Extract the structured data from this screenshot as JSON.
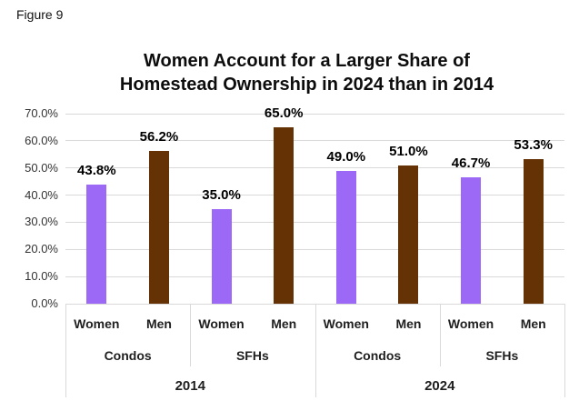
{
  "figure_label": "Figure 9",
  "chart_data": {
    "type": "bar",
    "title": "Women Account for a Larger Share of Homestead Ownership in 2024 than in 2014",
    "title_line1": "Women Account for a Larger Share of",
    "title_line2": "Homestead Ownership in 2024 than in 2014",
    "values": [
      43.8,
      56.2,
      35.0,
      65.0,
      49.0,
      51.0,
      46.7,
      53.3
    ],
    "data_labels": [
      "43.8%",
      "56.2%",
      "35.0%",
      "65.0%",
      "49.0%",
      "51.0%",
      "46.7%",
      "53.3%"
    ],
    "axis_hierarchy": {
      "level1": [
        "Women",
        "Men",
        "Women",
        "Men",
        "Women",
        "Men",
        "Women",
        "Men"
      ],
      "level2": [
        "Condos",
        "SFHs",
        "Condos",
        "SFHs"
      ],
      "level3": [
        "2014",
        "2024"
      ]
    },
    "series_colors": {
      "Women": "#9b69f5",
      "Men": "#643205"
    },
    "y_ticks": [
      "0.0%",
      "10.0%",
      "20.0%",
      "30.0%",
      "40.0%",
      "50.0%",
      "60.0%",
      "70.0%"
    ],
    "ylim": [
      0,
      70
    ],
    "grid": true,
    "gridline_color": "#d9d9d9",
    "legend": "none"
  }
}
